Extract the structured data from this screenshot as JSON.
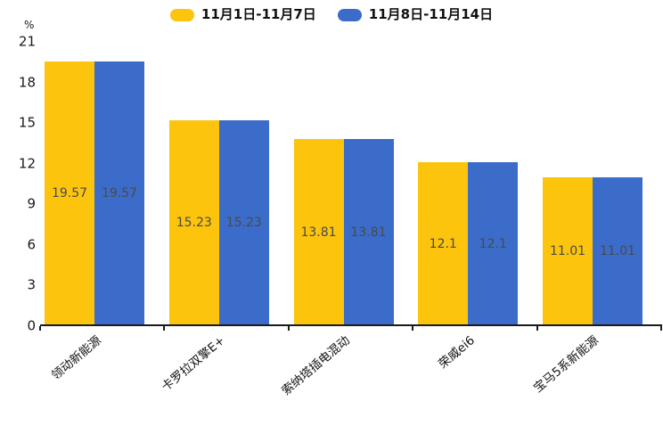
{
  "chart_data": {
    "type": "bar",
    "title": "",
    "xlabel": "",
    "ylabel": "%",
    "ylim": [
      0,
      21
    ],
    "yticks": [
      0,
      3,
      6,
      9,
      12,
      15,
      18,
      21
    ],
    "grid": false,
    "legend_position": "top-center",
    "categories": [
      "领动新能源",
      "卡罗拉双擎E+",
      "索纳塔插电混动",
      "荣威ei6",
      "宝马5系新能源"
    ],
    "series": [
      {
        "name": "11月1日-11月7日",
        "color": "#FCC40D",
        "values": [
          19.57,
          15.23,
          13.81,
          12.1,
          11.01
        ],
        "value_labels": [
          "19.57",
          "15.23",
          "13.81",
          "12.1",
          "11.01"
        ]
      },
      {
        "name": "11月8日-11月14日",
        "color": "#3B6CC9",
        "values": [
          19.57,
          15.23,
          13.81,
          12.1,
          11.01
        ],
        "value_labels": [
          "19.57",
          "15.23",
          "13.81",
          "12.1",
          "11.01"
        ]
      }
    ],
    "colors": {
      "axis": "#1a1a1a",
      "tick_label": "#1a1a1a",
      "value_label": "#4a4a4a"
    }
  }
}
